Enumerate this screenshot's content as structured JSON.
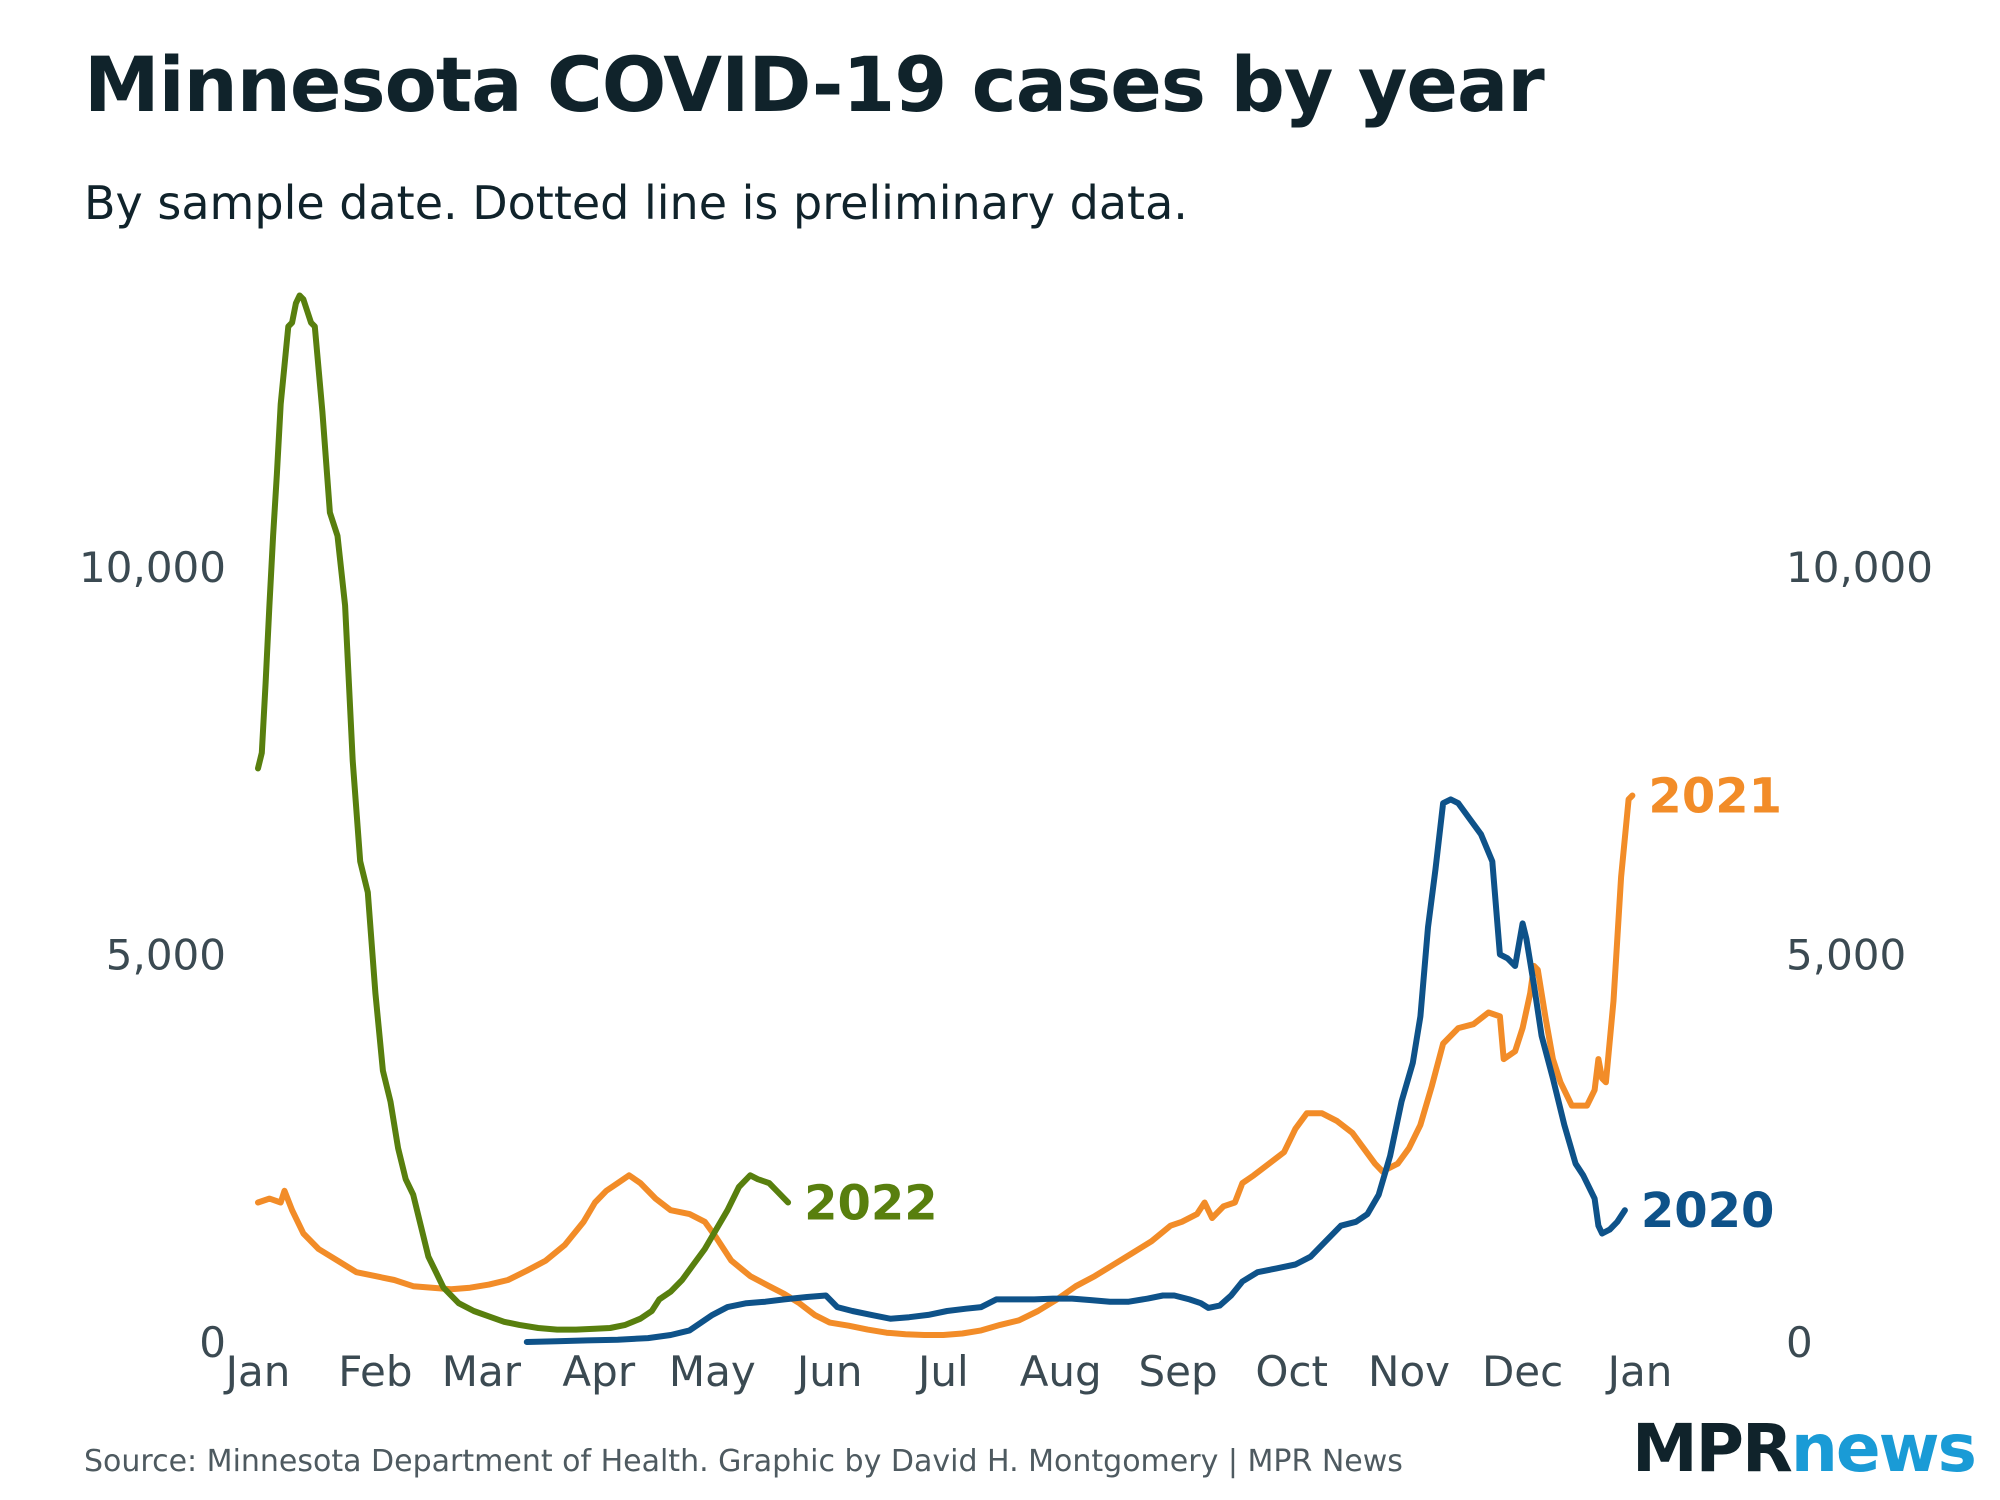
{
  "header": {
    "title": "Minnesota COVID-19 cases by year",
    "subtitle": "By sample date. Dotted line is preliminary data."
  },
  "footer": {
    "source": "Source: Minnesota Department of Health. Graphic by David H. Montgomery | MPR News",
    "logo_mpr": "MPR",
    "logo_news": "news"
  },
  "colors": {
    "2020": "#0e5289",
    "2021": "#f28c28",
    "2022": "#587f0e",
    "logo_news": "#1a9bd6"
  },
  "chart_data": {
    "type": "line",
    "title": "Minnesota COVID-19 cases by year",
    "subtitle": "By sample date. Dotted line is preliminary data.",
    "xlabel": "",
    "ylabel": "",
    "x_unit": "day of year",
    "xlim": [
      1,
      366
    ],
    "ylim": [
      0,
      13700
    ],
    "x_ticks": [
      {
        "label": "Jan",
        "x": 1
      },
      {
        "label": "Feb",
        "x": 32
      },
      {
        "label": "Mar",
        "x": 60
      },
      {
        "label": "Apr",
        "x": 91
      },
      {
        "label": "May",
        "x": 121
      },
      {
        "label": "Jun",
        "x": 152
      },
      {
        "label": "Jul",
        "x": 182
      },
      {
        "label": "Aug",
        "x": 213
      },
      {
        "label": "Sep",
        "x": 244
      },
      {
        "label": "Oct",
        "x": 274
      },
      {
        "label": "Nov",
        "x": 305
      },
      {
        "label": "Dec",
        "x": 335
      },
      {
        "label": "Jan",
        "x": 366
      }
    ],
    "y_ticks": [
      {
        "label": "0",
        "y": 0
      },
      {
        "label": "5,000",
        "y": 5000
      },
      {
        "label": "10,000",
        "y": 10000
      }
    ],
    "y_ticks_right": [
      {
        "label": "0",
        "y": 0
      },
      {
        "label": "5,000",
        "y": 5000
      },
      {
        "label": "10,000",
        "y": 10000
      }
    ],
    "grid": false,
    "legend": "direct labels at line ends",
    "series": [
      {
        "name": "2021",
        "color": "#f28c28",
        "points": [
          [
            1,
            1800
          ],
          [
            4,
            1850
          ],
          [
            7,
            1800
          ],
          [
            8,
            1950
          ],
          [
            10,
            1700
          ],
          [
            13,
            1400
          ],
          [
            17,
            1200
          ],
          [
            22,
            1050
          ],
          [
            27,
            900
          ],
          [
            32,
            850
          ],
          [
            37,
            800
          ],
          [
            42,
            720
          ],
          [
            47,
            700
          ],
          [
            52,
            680
          ],
          [
            57,
            700
          ],
          [
            62,
            740
          ],
          [
            67,
            800
          ],
          [
            72,
            920
          ],
          [
            77,
            1050
          ],
          [
            82,
            1250
          ],
          [
            87,
            1550
          ],
          [
            90,
            1800
          ],
          [
            93,
            1950
          ],
          [
            96,
            2050
          ],
          [
            99,
            2150
          ],
          [
            102,
            2050
          ],
          [
            106,
            1850
          ],
          [
            110,
            1700
          ],
          [
            115,
            1650
          ],
          [
            119,
            1550
          ],
          [
            122,
            1350
          ],
          [
            126,
            1050
          ],
          [
            131,
            850
          ],
          [
            136,
            720
          ],
          [
            140,
            620
          ],
          [
            144,
            500
          ],
          [
            148,
            350
          ],
          [
            152,
            250
          ],
          [
            157,
            210
          ],
          [
            162,
            160
          ],
          [
            167,
            120
          ],
          [
            172,
            100
          ],
          [
            177,
            90
          ],
          [
            182,
            90
          ],
          [
            187,
            110
          ],
          [
            192,
            150
          ],
          [
            197,
            220
          ],
          [
            202,
            280
          ],
          [
            207,
            400
          ],
          [
            212,
            550
          ],
          [
            217,
            720
          ],
          [
            222,
            850
          ],
          [
            227,
            1000
          ],
          [
            232,
            1150
          ],
          [
            237,
            1300
          ],
          [
            242,
            1500
          ],
          [
            245,
            1550
          ],
          [
            249,
            1650
          ],
          [
            251,
            1800
          ],
          [
            253,
            1600
          ],
          [
            256,
            1750
          ],
          [
            259,
            1800
          ],
          [
            261,
            2050
          ],
          [
            264,
            2150
          ],
          [
            268,
            2300
          ],
          [
            272,
            2450
          ],
          [
            275,
            2750
          ],
          [
            278,
            2950
          ],
          [
            282,
            2950
          ],
          [
            286,
            2850
          ],
          [
            290,
            2700
          ],
          [
            293,
            2500
          ],
          [
            296,
            2300
          ],
          [
            298,
            2200
          ],
          [
            302,
            2300
          ],
          [
            305,
            2500
          ],
          [
            308,
            2800
          ],
          [
            311,
            3300
          ],
          [
            314,
            3850
          ],
          [
            318,
            4050
          ],
          [
            322,
            4100
          ],
          [
            326,
            4250
          ],
          [
            329,
            4200
          ],
          [
            330,
            3650
          ],
          [
            333,
            3750
          ],
          [
            335,
            4050
          ],
          [
            337,
            4500
          ],
          [
            338,
            4850
          ],
          [
            339,
            4800
          ],
          [
            341,
            4200
          ],
          [
            343,
            3650
          ],
          [
            345,
            3350
          ],
          [
            348,
            3050
          ],
          [
            352,
            3050
          ],
          [
            354,
            3250
          ],
          [
            355,
            3650
          ],
          [
            356,
            3400
          ],
          [
            357,
            3350
          ],
          [
            359,
            4400
          ],
          [
            360,
            5200
          ],
          [
            361,
            6000
          ],
          [
            363,
            7000
          ],
          [
            364,
            7050
          ]
        ]
      },
      {
        "name": "2020",
        "color": "#0e5289",
        "points": [
          [
            72,
            0
          ],
          [
            80,
            10
          ],
          [
            88,
            20
          ],
          [
            96,
            30
          ],
          [
            104,
            50
          ],
          [
            110,
            90
          ],
          [
            115,
            150
          ],
          [
            118,
            250
          ],
          [
            121,
            350
          ],
          [
            125,
            450
          ],
          [
            130,
            500
          ],
          [
            135,
            520
          ],
          [
            140,
            550
          ],
          [
            146,
            580
          ],
          [
            151,
            600
          ],
          [
            154,
            450
          ],
          [
            158,
            400
          ],
          [
            163,
            350
          ],
          [
            168,
            300
          ],
          [
            173,
            320
          ],
          [
            178,
            350
          ],
          [
            183,
            400
          ],
          [
            188,
            430
          ],
          [
            192,
            450
          ],
          [
            196,
            550
          ],
          [
            201,
            550
          ],
          [
            206,
            550
          ],
          [
            211,
            560
          ],
          [
            216,
            560
          ],
          [
            221,
            540
          ],
          [
            226,
            520
          ],
          [
            231,
            520
          ],
          [
            236,
            560
          ],
          [
            240,
            600
          ],
          [
            243,
            600
          ],
          [
            247,
            550
          ],
          [
            250,
            500
          ],
          [
            252,
            440
          ],
          [
            255,
            470
          ],
          [
            258,
            600
          ],
          [
            261,
            780
          ],
          [
            265,
            900
          ],
          [
            270,
            950
          ],
          [
            275,
            1000
          ],
          [
            279,
            1100
          ],
          [
            283,
            1300
          ],
          [
            287,
            1500
          ],
          [
            291,
            1550
          ],
          [
            294,
            1650
          ],
          [
            297,
            1900
          ],
          [
            300,
            2400
          ],
          [
            303,
            3100
          ],
          [
            306,
            3600
          ],
          [
            308,
            4200
          ],
          [
            310,
            5350
          ],
          [
            312,
            6100
          ],
          [
            314,
            6950
          ],
          [
            316,
            7000
          ],
          [
            318,
            6950
          ],
          [
            321,
            6750
          ],
          [
            324,
            6550
          ],
          [
            327,
            6200
          ],
          [
            329,
            5000
          ],
          [
            331,
            4950
          ],
          [
            333,
            4850
          ],
          [
            335,
            5400
          ],
          [
            336,
            5200
          ],
          [
            338,
            4600
          ],
          [
            340,
            3950
          ],
          [
            343,
            3400
          ],
          [
            346,
            2800
          ],
          [
            349,
            2300
          ],
          [
            351,
            2150
          ],
          [
            354,
            1850
          ],
          [
            355,
            1500
          ],
          [
            356,
            1400
          ],
          [
            358,
            1450
          ],
          [
            360,
            1550
          ],
          [
            362,
            1700
          ]
        ]
      },
      {
        "name": "2022",
        "color": "#587f0e",
        "points": [
          [
            1,
            7400
          ],
          [
            2,
            7600
          ],
          [
            3,
            8500
          ],
          [
            4,
            9500
          ],
          [
            5,
            10400
          ],
          [
            6,
            11200
          ],
          [
            7,
            12100
          ],
          [
            8,
            12600
          ],
          [
            9,
            13100
          ],
          [
            10,
            13150
          ],
          [
            11,
            13400
          ],
          [
            12,
            13500
          ],
          [
            13,
            13450
          ],
          [
            14,
            13300
          ],
          [
            15,
            13150
          ],
          [
            16,
            13100
          ],
          [
            18,
            12000
          ],
          [
            20,
            10700
          ],
          [
            22,
            10400
          ],
          [
            24,
            9500
          ],
          [
            26,
            7500
          ],
          [
            28,
            6200
          ],
          [
            30,
            5800
          ],
          [
            32,
            4500
          ],
          [
            34,
            3500
          ],
          [
            36,
            3100
          ],
          [
            38,
            2500
          ],
          [
            40,
            2100
          ],
          [
            42,
            1900
          ],
          [
            44,
            1500
          ],
          [
            46,
            1100
          ],
          [
            48,
            900
          ],
          [
            50,
            700
          ],
          [
            54,
            500
          ],
          [
            58,
            400
          ],
          [
            62,
            330
          ],
          [
            66,
            260
          ],
          [
            70,
            220
          ],
          [
            75,
            180
          ],
          [
            80,
            160
          ],
          [
            85,
            160
          ],
          [
            90,
            170
          ],
          [
            94,
            180
          ],
          [
            98,
            220
          ],
          [
            102,
            300
          ],
          [
            105,
            400
          ],
          [
            107,
            550
          ],
          [
            110,
            650
          ],
          [
            113,
            800
          ],
          [
            116,
            1000
          ],
          [
            119,
            1200
          ],
          [
            122,
            1450
          ],
          [
            125,
            1700
          ],
          [
            128,
            2000
          ],
          [
            131,
            2150
          ],
          [
            133,
            2100
          ],
          [
            136,
            2050
          ],
          [
            138,
            1950
          ],
          [
            141,
            1800
          ]
        ]
      }
    ],
    "labels": [
      {
        "text": "2022",
        "series": "2022"
      },
      {
        "text": "2021",
        "series": "2021"
      },
      {
        "text": "2020",
        "series": "2020"
      }
    ]
  }
}
